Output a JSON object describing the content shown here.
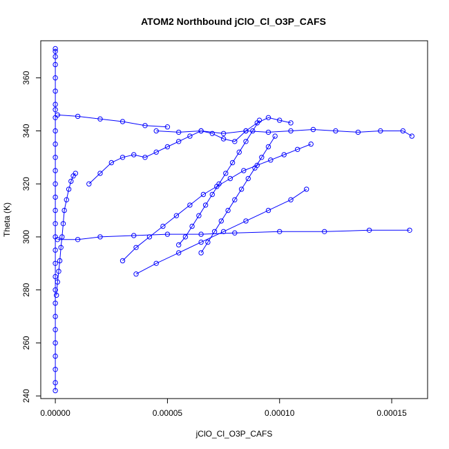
{
  "chart_data": {
    "type": "scatter",
    "title": "ATOM2 Northbound jClO_Cl_O3P_CAFS",
    "xlabel": "jClO_Cl_O3P_CAFS",
    "ylabel": "Theta (K)",
    "xlim": [
      -6.5e-06,
      0.000166
    ],
    "ylim": [
      239,
      374
    ],
    "x_ticks": [
      0,
      5e-05,
      0.0001,
      0.00015
    ],
    "x_tick_labels": [
      "0.00000",
      "0.00005",
      "0.00010",
      "0.00015"
    ],
    "y_ticks": [
      240,
      260,
      280,
      300,
      320,
      340,
      360
    ],
    "y_tick_labels": [
      "240",
      "260",
      "280",
      "300",
      "320",
      "340",
      "360"
    ],
    "point_style": "open-circle-with-lines",
    "color": "#0000ff",
    "series": [
      {
        "x": [
          0,
          0,
          0,
          0,
          0,
          0,
          0,
          0,
          0,
          0,
          0,
          0,
          0,
          0,
          0,
          0,
          0,
          0,
          0,
          0,
          0,
          0,
          0,
          0,
          0,
          0,
          0,
          0,
          0,
          0
        ],
        "y": [
          242,
          245,
          250,
          255,
          260,
          265,
          270,
          275,
          280,
          285,
          290,
          295,
          300,
          305,
          310,
          315,
          320,
          325,
          330,
          335,
          340,
          345,
          348,
          350,
          355,
          360,
          365,
          368,
          370,
          371
        ]
      },
      {
        "x": [
          5e-07,
          1e-06,
          1.5e-06,
          2e-06,
          2.5e-06,
          3e-06,
          3.5e-06,
          4e-06,
          5e-06,
          6e-06,
          7e-06,
          8e-06,
          9e-06
        ],
        "y": [
          278,
          283,
          287,
          291,
          296,
          300,
          305,
          310,
          314,
          318,
          321,
          323,
          324
        ]
      },
      {
        "x": [
          1e-06,
          1e-05,
          2e-05,
          3e-05,
          4e-05,
          5e-05
        ],
        "y": [
          346,
          345.5,
          344.5,
          343.5,
          342,
          341.5
        ]
      },
      {
        "x": [
          1e-06,
          1e-05,
          2e-05,
          3.5e-05,
          5e-05,
          6.5e-05,
          8e-05,
          0.0001,
          0.00012,
          0.00014,
          0.000158
        ],
        "y": [
          299,
          299,
          300,
          300.5,
          301,
          301,
          301.5,
          302,
          302,
          302.5,
          302.5
        ]
      },
      {
        "x": [
          3e-05,
          3.6e-05,
          4.2e-05,
          4.8e-05,
          5.4e-05,
          6e-05,
          6.6e-05,
          7.2e-05,
          7.8e-05,
          8.4e-05,
          9e-05,
          9.6e-05,
          0.000102,
          0.000108,
          0.000114
        ],
        "y": [
          291,
          296,
          300,
          304,
          308,
          312,
          316,
          319,
          322,
          325,
          327,
          329,
          331,
          333,
          335
        ]
      },
      {
        "x": [
          4.5e-05,
          5.5e-05,
          6.5e-05,
          7.5e-05,
          8.5e-05,
          9.5e-05,
          0.000105,
          0.000115,
          0.000125,
          0.000135,
          0.000145,
          0.000155,
          0.000159
        ],
        "y": [
          340,
          339.5,
          340,
          339,
          340,
          339.5,
          340,
          340.5,
          340,
          339.5,
          340,
          340,
          338
        ]
      },
      {
        "x": [
          3.6e-05,
          4.5e-05,
          5.5e-05,
          6.5e-05,
          7.5e-05,
          8.5e-05,
          9.5e-05,
          0.000105,
          0.000112
        ],
        "y": [
          286,
          290,
          294,
          298,
          302,
          306,
          310,
          314,
          318
        ]
      },
      {
        "x": [
          1.5e-05,
          2e-05,
          2.5e-05,
          3e-05,
          3.5e-05,
          4e-05,
          4.5e-05,
          5e-05,
          5.5e-05,
          6e-05,
          6.5e-05,
          7e-05,
          7.5e-05,
          8e-05,
          8.5e-05,
          9e-05,
          9.5e-05,
          0.0001,
          0.000105
        ],
        "y": [
          320,
          324,
          328,
          330,
          331,
          330,
          332,
          334,
          336,
          338,
          340,
          339,
          337,
          336,
          340,
          343,
          345,
          344,
          343
        ]
      },
      {
        "x": [
          5.5e-05,
          5.8e-05,
          6.1e-05,
          6.4e-05,
          6.7e-05,
          7e-05,
          7.3e-05,
          7.6e-05,
          7.9e-05,
          8.2e-05,
          8.5e-05,
          8.8e-05,
          9.1e-05
        ],
        "y": [
          297,
          300,
          304,
          308,
          312,
          316,
          320,
          324,
          328,
          332,
          336,
          340,
          344
        ]
      },
      {
        "x": [
          6.5e-05,
          6.8e-05,
          7.1e-05,
          7.4e-05,
          7.7e-05,
          8e-05,
          8.3e-05,
          8.6e-05,
          8.9e-05,
          9.2e-05,
          9.5e-05,
          9.8e-05
        ],
        "y": [
          294,
          298,
          302,
          306,
          310,
          314,
          318,
          322,
          326,
          330,
          334,
          338
        ]
      }
    ]
  }
}
